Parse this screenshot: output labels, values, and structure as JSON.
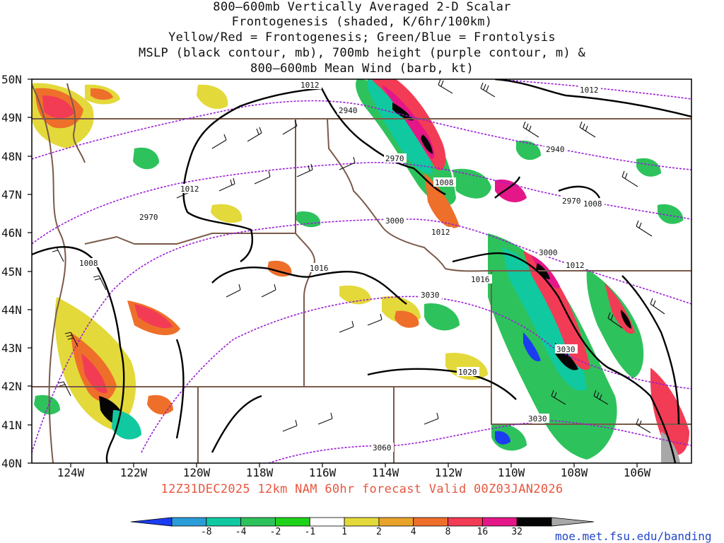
{
  "title_lines": [
    "800–600mb Vertically Averaged 2-D Scalar",
    "Frontogenesis (shaded, K/6hr/100km)",
    "Yellow/Red = Frontogenesis;  Green/Blue = Frontolysis",
    "MSLP (black contour, mb), 700mb height (purple contour, m) &",
    "800–600mb Mean Wind (barb, kt)"
  ],
  "lat_labels": [
    "50N",
    "49N",
    "48N",
    "47N",
    "46N",
    "45N",
    "44N",
    "43N",
    "42N",
    "41N",
    "40N"
  ],
  "lon_labels": [
    "124W",
    "122W",
    "120W",
    "118W",
    "116W",
    "114W",
    "112W",
    "110W",
    "108W",
    "106W"
  ],
  "valid_line": "12Z31DEC2025 12km NAM 60hr forecast Valid 00Z03JAN2026",
  "colorbar": {
    "labels": [
      "-8",
      "-4",
      "-2",
      "-1",
      "1",
      "2",
      "4",
      "8",
      "16",
      "32"
    ],
    "colors": [
      "#1b3cf0",
      "#2a9dd8",
      "#10c9a0",
      "#2ec25c",
      "#1fd31a",
      "#ffffff",
      "#e3d93a",
      "#e9a32a",
      "#ee6f2a",
      "#f23c55",
      "#e51788",
      "#050505",
      "#a8a8a8"
    ]
  },
  "contour_labels": {
    "mslp": [
      "1012",
      "1012",
      "1012",
      "1008",
      "1008",
      "1008",
      "1012",
      "1016",
      "1016",
      "1012",
      "1020"
    ],
    "height": [
      "2940",
      "2970",
      "2940",
      "2970",
      "2970",
      "3000",
      "3000",
      "3030",
      "3030",
      "3030",
      "3060"
    ]
  },
  "footer_url": "moe.met.fsu.edu/banding",
  "colors": {
    "mslp_contour": "#000000",
    "height_contour": "#9b1fd6",
    "borders": "#7a5a4a",
    "valid_text": "#e8563f"
  }
}
